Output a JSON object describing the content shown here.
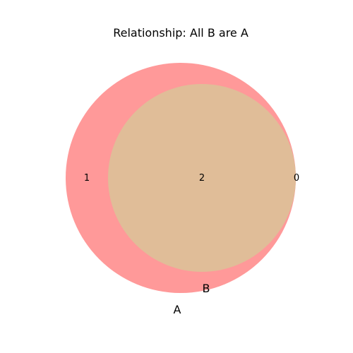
{
  "title": "Relationship: All B are A",
  "sets": [
    {
      "name": "A",
      "color": "#ff9999"
    },
    {
      "name": "B",
      "color": "#e0bd98"
    }
  ],
  "region_counts": {
    "only_a": "1",
    "a_and_b": "2",
    "only_b": "0"
  }
}
